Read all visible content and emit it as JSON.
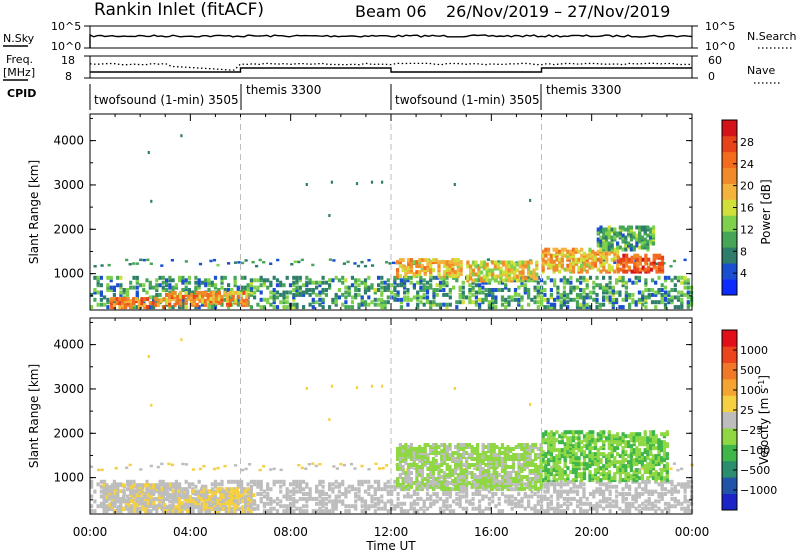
{
  "header": {
    "station": "Rankin Inlet (fitACF)",
    "beam": "Beam 06",
    "date_range": "26/Nov/2019 – 27/Nov/2019"
  },
  "top_panels": {
    "nsky_label": "N.Sky",
    "nsky_ticks": [
      "10^5",
      "10^0"
    ],
    "nsearch_label": "N.Search",
    "nsearch_ticks": [
      "10^5",
      "10^0"
    ],
    "freq_label": "Freq.",
    "freq_unit": "[MHz]",
    "freq_ticks": [
      "18",
      "8"
    ],
    "nave_label": "Nave",
    "nave_ticks": [
      "60",
      "0"
    ],
    "cpid_label": "CPID",
    "cpid_segments": [
      {
        "label": "twofsound (1-min) 3505",
        "start_hour": 0,
        "end_hour": 6
      },
      {
        "label": "themis 3300",
        "start_hour": 6,
        "end_hour": 12
      },
      {
        "label": "twofsound (1-min) 3505",
        "start_hour": 12,
        "end_hour": 18
      },
      {
        "label": "themis 3300",
        "start_hour": 18,
        "end_hour": 24
      }
    ]
  },
  "chart_data": [
    {
      "type": "heatmap",
      "name": "power",
      "ylabel": "Slant Range [km]",
      "yticks": [
        "4000",
        "3000",
        "2000",
        "1000"
      ],
      "ylim": [
        180,
        4600
      ],
      "colorbar": {
        "label": "Power [dB]",
        "ticks": [
          "28",
          "24",
          "20",
          "16",
          "12",
          "8",
          "4"
        ],
        "range": [
          0,
          30
        ],
        "colors": [
          "#0c2cff",
          "#1a4fd0",
          "#2e7d6b",
          "#46a657",
          "#7fd14c",
          "#cfe03a",
          "#f4b43b",
          "#f08a2a",
          "#f36b1d",
          "#e8421a",
          "#d4121a"
        ]
      },
      "blobs": [
        {
          "h0": 0.8,
          "h1": 3.0,
          "r0": 200,
          "r1": 420,
          "v": 22
        },
        {
          "h0": 3.0,
          "h1": 6.3,
          "r0": 250,
          "r1": 550,
          "v": 20
        },
        {
          "h0": 12.2,
          "h1": 14.8,
          "r0": 900,
          "r1": 1300,
          "v": 18
        },
        {
          "h0": 15.0,
          "h1": 17.8,
          "r0": 800,
          "r1": 1250,
          "v": 16
        },
        {
          "h0": 18.0,
          "h1": 21.0,
          "r0": 1000,
          "r1": 1500,
          "v": 18
        },
        {
          "h0": 21.0,
          "h1": 22.8,
          "r0": 1000,
          "r1": 1400,
          "v": 24
        },
        {
          "h0": 20.2,
          "h1": 22.5,
          "r0": 1500,
          "r1": 2000,
          "v": 10
        }
      ],
      "sparse_points": [
        {
          "h": 2.3,
          "r": 3720
        },
        {
          "h": 2.4,
          "r": 2620
        },
        {
          "h": 3.6,
          "r": 4100
        },
        {
          "h": 8.6,
          "r": 3000
        },
        {
          "h": 9.6,
          "r": 3050
        },
        {
          "h": 10.6,
          "r": 3020
        },
        {
          "h": 11.2,
          "r": 3050
        },
        {
          "h": 11.6,
          "r": 3050
        },
        {
          "h": 14.5,
          "r": 3000
        },
        {
          "h": 17.5,
          "r": 2640
        },
        {
          "h": 9.5,
          "r": 2300
        }
      ]
    },
    {
      "type": "heatmap",
      "name": "velocity",
      "ylabel": "Slant Range [km]",
      "yticks": [
        "4000",
        "3000",
        "2000",
        "1000"
      ],
      "ylim": [
        180,
        4600
      ],
      "xlabel": "Time UT",
      "xticks": [
        "00:00",
        "04:00",
        "08:00",
        "12:00",
        "16:00",
        "20:00",
        "00:00"
      ],
      "xlim": [
        0,
        24
      ],
      "colorbar": {
        "label": "Velocity [m s^-1]",
        "ticks": [
          "1000",
          "500",
          "100",
          "25",
          "−25",
          "−100",
          "−500",
          "−1000"
        ],
        "range": [
          -1200,
          1200
        ],
        "colors": [
          "#1c24c8",
          "#1f54a8",
          "#2a8e6e",
          "#3fb649",
          "#8fd843",
          "#bdbdbd",
          "#f5d040",
          "#f5a431",
          "#f07828",
          "#ec451c",
          "#e10f17"
        ]
      },
      "blobs": [
        {
          "h0": 0.5,
          "h1": 3.5,
          "r0": 200,
          "r1": 800,
          "v": 50
        },
        {
          "h0": 3.5,
          "h1": 6.5,
          "r0": 200,
          "r1": 700,
          "v": 120
        },
        {
          "h0": 12.2,
          "h1": 18.0,
          "r0": 700,
          "r1": 1700,
          "v": -150
        },
        {
          "h0": 18.0,
          "h1": 23.0,
          "r0": 900,
          "r1": 2000,
          "v": -300
        }
      ]
    }
  ]
}
